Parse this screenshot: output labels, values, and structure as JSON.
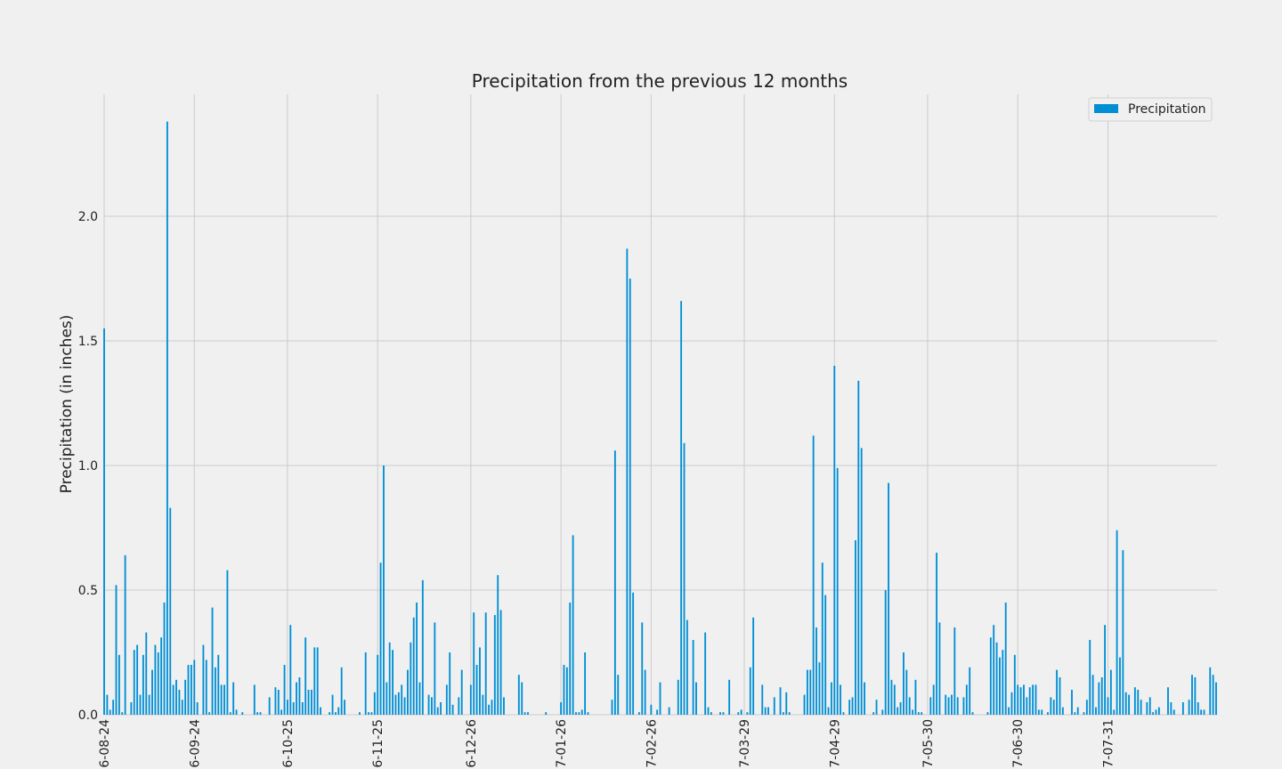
{
  "chart_data": {
    "type": "bar",
    "title": "Precipitation from the previous 12 months",
    "xlabel": "",
    "ylabel": "Precipitation (in inches)",
    "ylim": [
      0,
      2.5
    ],
    "yticks": [
      0.0,
      0.5,
      1.0,
      1.5,
      2.0
    ],
    "ytick_labels": [
      "0.0",
      "0.5",
      "1.0",
      "1.5",
      "2.0"
    ],
    "xtick_labels": [
      "6-08-24",
      "6-09-24",
      "6-10-25",
      "6-11-25",
      "6-12-26",
      "7-01-26",
      "7-02-26",
      "7-03-29",
      "7-04-29",
      "7-05-30",
      "7-06-30",
      "7-07-31"
    ],
    "grid": true,
    "legend": {
      "position": "top-right",
      "entries": [
        "Precipitation"
      ]
    },
    "series": [
      {
        "name": "Precipitation",
        "color": "#008fd5",
        "values": [
          1.55,
          0.08,
          0.02,
          0.06,
          0.52,
          0.24,
          0.01,
          0.64,
          0.0,
          0.05,
          0.26,
          0.28,
          0.08,
          0.24,
          0.33,
          0.08,
          0.18,
          0.28,
          0.25,
          0.31,
          0.45,
          2.38,
          0.83,
          0.12,
          0.14,
          0.1,
          0.06,
          0.14,
          0.2,
          0.2,
          0.22,
          0.05,
          0.0,
          0.28,
          0.22,
          0.01,
          0.43,
          0.19,
          0.24,
          0.12,
          0.12,
          0.58,
          0.01,
          0.13,
          0.02,
          0.0,
          0.01,
          0.0,
          0.0,
          0.0,
          0.12,
          0.01,
          0.01,
          0.0,
          0.0,
          0.07,
          0.0,
          0.11,
          0.1,
          0.02,
          0.2,
          0.06,
          0.36,
          0.05,
          0.13,
          0.15,
          0.05,
          0.31,
          0.1,
          0.1,
          0.27,
          0.27,
          0.03,
          0.0,
          0.0,
          0.01,
          0.08,
          0.01,
          0.03,
          0.19,
          0.06,
          0.0,
          0.0,
          0.0,
          0.0,
          0.01,
          0.0,
          0.25,
          0.01,
          0.01,
          0.09,
          0.24,
          0.61,
          1.0,
          0.13,
          0.29,
          0.26,
          0.08,
          0.09,
          0.12,
          0.07,
          0.18,
          0.29,
          0.39,
          0.45,
          0.13,
          0.54,
          0.0,
          0.08,
          0.07,
          0.37,
          0.03,
          0.05,
          0.0,
          0.12,
          0.25,
          0.04,
          0.0,
          0.07,
          0.18,
          0.0,
          0.0,
          0.12,
          0.41,
          0.2,
          0.27,
          0.08,
          0.41,
          0.04,
          0.06,
          0.4,
          0.56,
          0.42,
          0.07,
          0.0,
          0.0,
          0.0,
          0.0,
          0.16,
          0.13,
          0.01,
          0.01,
          0.0,
          0.0,
          0.0,
          0.0,
          0.0,
          0.01,
          0.0,
          0.0,
          0.0,
          0.0,
          0.05,
          0.2,
          0.19,
          0.45,
          0.72,
          0.01,
          0.01,
          0.02,
          0.25,
          0.01,
          0.0,
          0.0,
          0.0,
          0.0,
          0.0,
          0.0,
          0.0,
          0.06,
          1.06,
          0.16,
          0.0,
          0.0,
          1.87,
          1.75,
          0.49,
          0.0,
          0.01,
          0.37,
          0.18,
          0.0,
          0.04,
          0.0,
          0.02,
          0.13,
          0.0,
          0.0,
          0.03,
          0.0,
          0.0,
          0.14,
          1.66,
          1.09,
          0.38,
          0.0,
          0.3,
          0.13,
          0.0,
          0.0,
          0.33,
          0.03,
          0.01,
          0.0,
          0.0,
          0.01,
          0.01,
          0.0,
          0.14,
          0.0,
          0.0,
          0.01,
          0.02,
          0.0,
          0.01,
          0.19,
          0.39,
          0.0,
          0.0,
          0.12,
          0.03,
          0.03,
          0.0,
          0.07,
          0.0,
          0.11,
          0.01,
          0.09,
          0.01,
          0.0,
          0.0,
          0.0,
          0.0,
          0.08,
          0.18,
          0.18,
          1.12,
          0.35,
          0.21,
          0.61,
          0.48,
          0.03,
          0.13,
          1.4,
          0.99,
          0.12,
          0.01,
          0.0,
          0.06,
          0.07,
          0.7,
          1.34,
          1.07,
          0.13,
          0.0,
          0.0,
          0.01,
          0.06,
          0.0,
          0.02,
          0.5,
          0.93,
          0.14,
          0.12,
          0.03,
          0.05,
          0.25,
          0.18,
          0.07,
          0.02,
          0.14,
          0.01,
          0.01,
          0.0,
          0.0,
          0.07,
          0.12,
          0.65,
          0.37,
          0.0,
          0.08,
          0.07,
          0.08,
          0.35,
          0.07,
          0.0,
          0.07,
          0.12,
          0.19,
          0.01,
          0.0,
          0.0,
          0.0,
          0.0,
          0.01,
          0.31,
          0.36,
          0.29,
          0.23,
          0.26,
          0.45,
          0.03,
          0.09,
          0.24,
          0.12,
          0.11,
          0.12,
          0.07,
          0.11,
          0.12,
          0.12,
          0.02,
          0.02,
          0.0,
          0.01,
          0.07,
          0.06,
          0.18,
          0.15,
          0.03,
          0.0,
          0.0,
          0.1,
          0.01,
          0.03,
          0.0,
          0.01,
          0.06,
          0.3,
          0.16,
          0.03,
          0.13,
          0.15,
          0.36,
          0.07,
          0.18,
          0.02,
          0.74,
          0.23,
          0.66,
          0.09,
          0.08,
          0.0,
          0.11,
          0.1,
          0.06,
          0.0,
          0.05,
          0.07,
          0.01,
          0.02,
          0.03,
          0.0,
          0.0,
          0.11,
          0.05,
          0.02,
          0.0,
          0.0,
          0.05,
          0.0,
          0.06,
          0.16,
          0.15,
          0.05,
          0.02,
          0.02,
          0.0,
          0.19,
          0.16,
          0.13
        ]
      }
    ]
  }
}
